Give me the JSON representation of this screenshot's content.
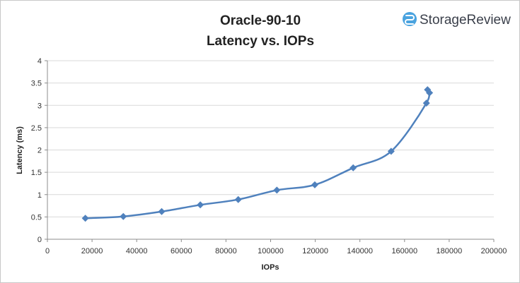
{
  "chart_data": {
    "type": "scatter",
    "title": "Oracle-90-10",
    "subtitle": "Latency vs. IOPs",
    "xlabel": "IOPs",
    "ylabel": "Latency (ms)",
    "xlim": [
      0,
      200000
    ],
    "ylim": [
      0,
      4
    ],
    "xticks": [
      0,
      20000,
      40000,
      60000,
      80000,
      100000,
      120000,
      140000,
      160000,
      180000,
      200000
    ],
    "yticks": [
      0,
      0.5,
      1,
      1.5,
      2,
      2.5,
      3,
      3.5,
      4
    ],
    "xtick_labels": [
      "0",
      "20000",
      "40000",
      "60000",
      "80000",
      "100000",
      "120000",
      "140000",
      "160000",
      "180000",
      "200000"
    ],
    "ytick_labels": [
      "0",
      "0.5",
      "1",
      "1.5",
      "2",
      "2.5",
      "3",
      "3.5",
      "4"
    ],
    "grid": "horizontal",
    "legend": "none",
    "series": [
      {
        "color": "#4f81bd",
        "marker": "diamond",
        "smooth": true,
        "x": [
          17000,
          34000,
          51200,
          68500,
          85500,
          102800,
          119800,
          137000,
          154000,
          169800,
          170300,
          171200
        ],
        "y": [
          0.47,
          0.51,
          0.62,
          0.77,
          0.89,
          1.1,
          1.22,
          1.6,
          1.97,
          3.05,
          3.35,
          3.28
        ]
      }
    ]
  },
  "logo": {
    "text": "StorageReview",
    "icon": "storagereview-logo-icon",
    "color": "#4aa3df"
  }
}
